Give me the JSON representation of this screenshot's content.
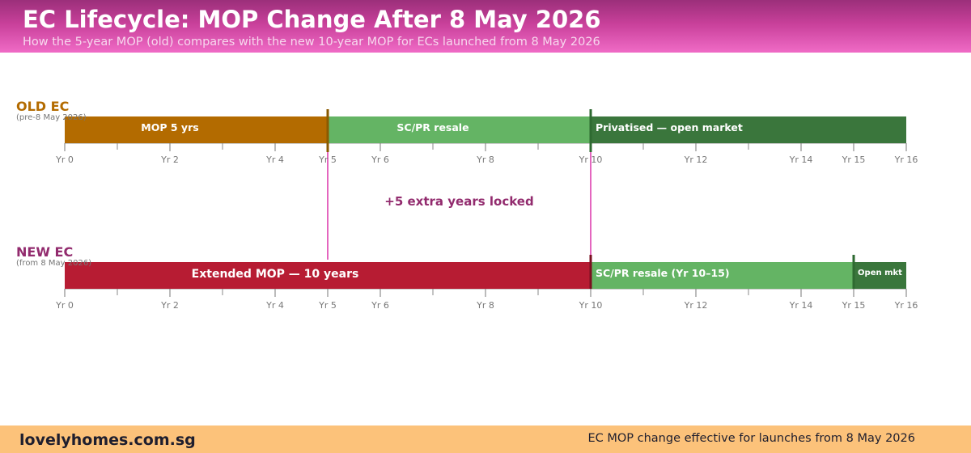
{
  "header": {
    "title": "EC Lifecycle: MOP Change After 8 May 2026",
    "subtitle": "How the 5-year MOP (old) compares with the new 10-year MOP for ECs launched from 8 May 2026"
  },
  "axis": {
    "min": 0,
    "max": 16,
    "major_ticks": [
      {
        "value": 0,
        "label": "Yr 0"
      },
      {
        "value": 2,
        "label": "Yr 2"
      },
      {
        "value": 4,
        "label": "Yr 4"
      },
      {
        "value": 5,
        "label": "Yr 5"
      },
      {
        "value": 6,
        "label": "Yr 6"
      },
      {
        "value": 8,
        "label": "Yr 8"
      },
      {
        "value": 10,
        "label": "Yr 10"
      },
      {
        "value": 12,
        "label": "Yr 12"
      },
      {
        "value": 14,
        "label": "Yr 14"
      },
      {
        "value": 15,
        "label": "Yr 15"
      },
      {
        "value": 16,
        "label": "Yr 16"
      }
    ],
    "minor_ticks": [
      1,
      3,
      7,
      9,
      11,
      13
    ]
  },
  "tracks": [
    {
      "id": "old",
      "label": "OLD EC",
      "sublabel": "(pre-8 May 2026)",
      "label_color": "#b36b00",
      "segments": [
        {
          "label": "MOP 5 yrs",
          "start": 0,
          "end": 5,
          "color": "#b36b00"
        },
        {
          "label": "SC/PR resale",
          "start": 5,
          "end": 10,
          "color": "#64b464"
        },
        {
          "label": "Privatised — open market",
          "start": 10,
          "end": 16,
          "color": "#3a763c",
          "align": "left"
        }
      ],
      "markers": [
        {
          "value": 5,
          "color": "#8a5a00"
        },
        {
          "value": 10,
          "color": "#2e6a31"
        }
      ]
    },
    {
      "id": "new",
      "label": "NEW EC",
      "sublabel": "(from 8 May 2026)",
      "label_color": "#922b6e",
      "segments": [
        {
          "label": "Extended MOP — 10 years",
          "start": 0,
          "end": 10,
          "color": "#b71c33"
        },
        {
          "label": "SC/PR resale (Yr 10–15)",
          "start": 10,
          "end": 15,
          "color": "#64b464",
          "align": "left"
        },
        {
          "label": "Open mkt",
          "start": 15,
          "end": 16,
          "color": "#3a763c",
          "small": true
        }
      ],
      "markers": [
        {
          "value": 10,
          "color": "#7a1020"
        },
        {
          "value": 15,
          "color": "#2e6a31"
        }
      ]
    }
  ],
  "annotation": {
    "text": "+5 extra years locked",
    "from": 5,
    "to": 10,
    "color": "#922b6e",
    "line_color": "#e466bf"
  },
  "footer": {
    "brand": "lovelyhomes.com.sg",
    "note": "EC MOP change effective for launches from 8 May 2026"
  }
}
